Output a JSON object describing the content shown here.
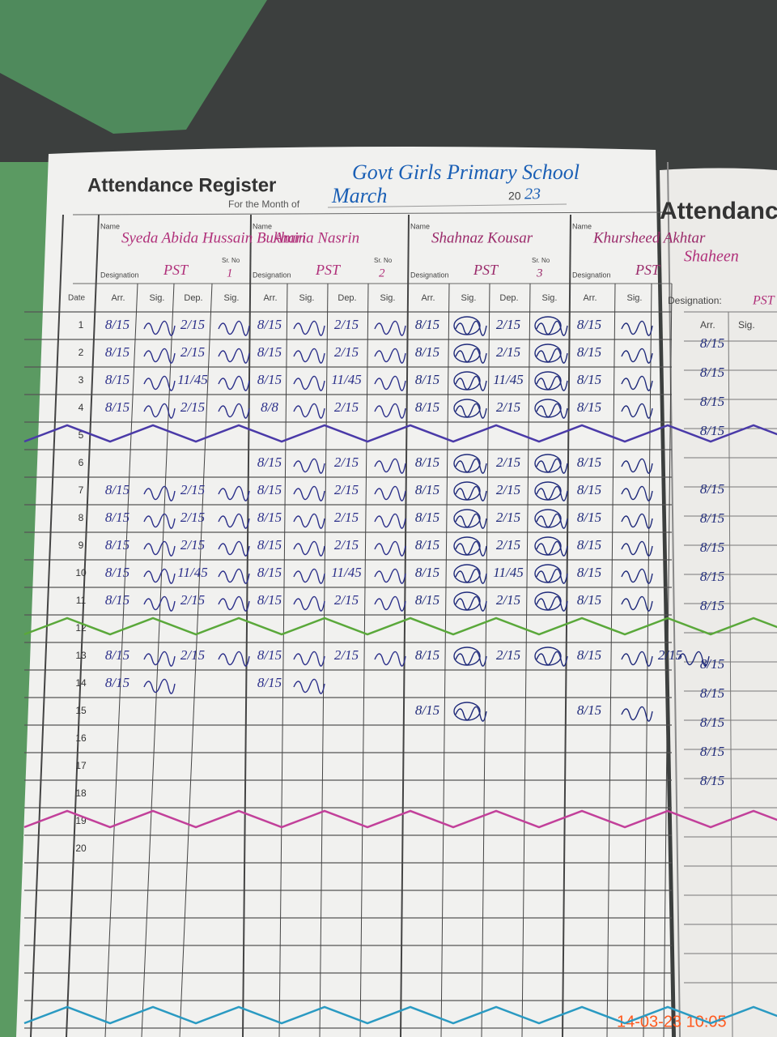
{
  "header": {
    "title": "Attendance Register",
    "school": "Govt Girls Primary School",
    "month_label": "For the Month of",
    "month": "March",
    "year_prefix": "20",
    "year": "23"
  },
  "column_labels": {
    "name": "Name",
    "designation": "Designation",
    "sr_no": "Sr. No",
    "date": "Date",
    "arr": "Arr.",
    "sig": "Sig.",
    "dep": "Dep."
  },
  "teachers": [
    {
      "name": "Syeda Abida Hussain Bukhari",
      "designation": "PST",
      "sr_no": "1"
    },
    {
      "name": "Amina Nasrin",
      "designation": "PST",
      "sr_no": "2"
    },
    {
      "name": "Shahnaz Kousar",
      "designation": "PST",
      "sr_no": "3"
    },
    {
      "name": "Khursheed Akhtar",
      "designation": "PST"
    }
  ],
  "dates": [
    "1",
    "2",
    "3",
    "4",
    "5",
    "6",
    "7",
    "8",
    "9",
    "10",
    "11",
    "12",
    "13",
    "14",
    "15",
    "16",
    "17",
    "18",
    "19",
    "20"
  ],
  "rows": [
    [
      [
        "8/15",
        "2/15"
      ],
      [
        "8/15",
        "2/15"
      ],
      [
        "8/15",
        "2/15"
      ],
      [
        "8/15",
        null
      ]
    ],
    [
      [
        "8/15",
        "2/15"
      ],
      [
        "8/15",
        "2/15"
      ],
      [
        "8/15",
        "2/15"
      ],
      [
        "8/15",
        null
      ]
    ],
    [
      [
        "8/15",
        "11/45"
      ],
      [
        "8/15",
        "11/45"
      ],
      [
        "8/15",
        "11/45"
      ],
      [
        "8/15",
        null
      ]
    ],
    [
      [
        "8/15",
        "2/15"
      ],
      [
        "8/8",
        "2/15"
      ],
      [
        "8/15",
        "2/15"
      ],
      [
        "8/15",
        null
      ]
    ],
    null,
    [
      [
        null,
        null
      ],
      [
        "8/15",
        "2/15"
      ],
      [
        "8/15",
        "2/15"
      ],
      [
        "8/15",
        null
      ]
    ],
    [
      [
        "8/15",
        "2/15"
      ],
      [
        "8/15",
        "2/15"
      ],
      [
        "8/15",
        "2/15"
      ],
      [
        "8/15",
        null
      ]
    ],
    [
      [
        "8/15",
        "2/15"
      ],
      [
        "8/15",
        "2/15"
      ],
      [
        "8/15",
        "2/15"
      ],
      [
        "8/15",
        null
      ]
    ],
    [
      [
        "8/15",
        "2/15"
      ],
      [
        "8/15",
        "2/15"
      ],
      [
        "8/15",
        "2/15"
      ],
      [
        "8/15",
        null
      ]
    ],
    [
      [
        "8/15",
        "11/45"
      ],
      [
        "8/15",
        "11/45"
      ],
      [
        "8/15",
        "11/45"
      ],
      [
        "8/15",
        null
      ]
    ],
    [
      [
        "8/15",
        "2/15"
      ],
      [
        "8/15",
        "2/15"
      ],
      [
        "8/15",
        "2/15"
      ],
      [
        "8/15",
        null
      ]
    ],
    null,
    [
      [
        "8/15",
        "2/15"
      ],
      [
        "8/15",
        "2/15"
      ],
      [
        "8/15",
        "2/15"
      ],
      [
        "8/15",
        "2/15"
      ]
    ],
    [
      [
        "8/15",
        null
      ],
      [
        "8/15",
        null
      ],
      [
        null,
        null
      ],
      [
        null,
        null
      ]
    ],
    [
      [
        null,
        null
      ],
      [
        null,
        null
      ],
      [
        "8/15",
        null
      ],
      [
        "8/15",
        null
      ]
    ],
    null,
    null,
    null,
    null,
    null
  ],
  "next_page": {
    "title": "Attendance",
    "designation_label": "Designation:",
    "name": "Shaheen",
    "designation": "PST",
    "arr": "Arr.",
    "sig": "Sig.",
    "arrivals": [
      "8/15",
      "8/15",
      "8/15",
      "8/15",
      "8/15",
      "8/15",
      "8/15",
      "8/15",
      "8/15",
      "8/15",
      "8/15",
      "8/15",
      "8/15",
      "8/15"
    ]
  },
  "timestamp": "14-03-23 10:05"
}
